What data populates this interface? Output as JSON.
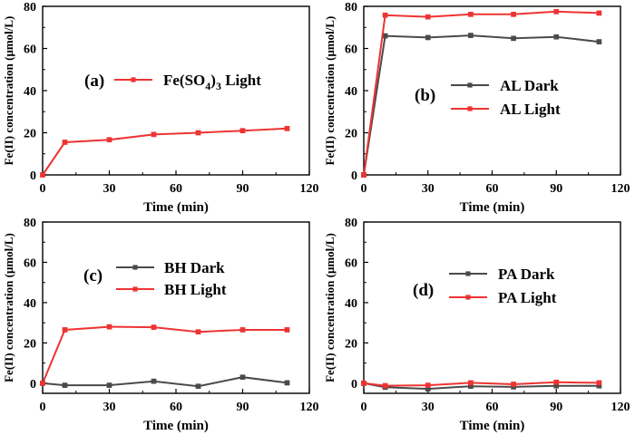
{
  "colors": {
    "dark": "#4a4a4a",
    "light": "#ee3333"
  },
  "chart_data": [
    {
      "type": "line",
      "panel_label": "(a)",
      "xlabel": "Time (min)",
      "ylabel": "Fe(II) concentration (μmol/L)",
      "xlim": [
        0,
        120
      ],
      "ylim": [
        0,
        80
      ],
      "xticks": [
        0,
        30,
        60,
        90,
        120
      ],
      "yticks": [
        0,
        20,
        40,
        60,
        80
      ],
      "legend_position": "center-left",
      "series": [
        {
          "name_parts": [
            "Fe(SO",
            "4",
            ")",
            "3",
            " Light"
          ],
          "color_key": "light",
          "x": [
            0,
            10,
            30,
            50,
            70,
            90,
            110
          ],
          "y": [
            0,
            15.5,
            16.7,
            19.2,
            20.0,
            21.0,
            22.0
          ]
        }
      ]
    },
    {
      "type": "line",
      "panel_label": "(b)",
      "xlabel": "Time (min)",
      "ylabel": "Fe(II) concentration (μmol/L)",
      "xlim": [
        0,
        120
      ],
      "ylim": [
        0,
        80
      ],
      "xticks": [
        0,
        30,
        60,
        90,
        120
      ],
      "yticks": [
        0,
        20,
        40,
        60,
        80
      ],
      "legend_position": "center-right",
      "series": [
        {
          "name": "AL Dark",
          "color_key": "dark",
          "x": [
            0,
            10,
            30,
            50,
            70,
            90,
            110
          ],
          "y": [
            0,
            66.0,
            65.2,
            66.2,
            64.8,
            65.5,
            63.2
          ]
        },
        {
          "name": "AL Light",
          "color_key": "light",
          "x": [
            0,
            10,
            30,
            50,
            70,
            90,
            110
          ],
          "y": [
            0,
            75.8,
            75.0,
            76.2,
            76.2,
            77.5,
            76.8
          ]
        }
      ]
    },
    {
      "type": "line",
      "panel_label": "(c)",
      "xlabel": "Time (min)",
      "ylabel": "Fe(II) concentration (μmol/L)",
      "xlim": [
        0,
        120
      ],
      "ylim": [
        -5,
        80
      ],
      "xticks": [
        0,
        30,
        60,
        90,
        120
      ],
      "yticks": [
        0,
        20,
        40,
        60,
        80
      ],
      "legend_position": "center",
      "series": [
        {
          "name": "BH Dark",
          "color_key": "dark",
          "x": [
            0,
            10,
            30,
            50,
            70,
            90,
            110
          ],
          "y": [
            0,
            -1.0,
            -1.0,
            1.0,
            -1.5,
            3.0,
            0.2
          ]
        },
        {
          "name": "BH Light",
          "color_key": "light",
          "x": [
            0,
            10,
            30,
            50,
            70,
            90,
            110
          ],
          "y": [
            0,
            26.5,
            28.0,
            27.8,
            25.5,
            26.5,
            26.5
          ]
        }
      ]
    },
    {
      "type": "line",
      "panel_label": "(d)",
      "xlabel": "Time (min)",
      "ylabel": "Fe(II) concentration (μmol/L)",
      "xlim": [
        0,
        120
      ],
      "ylim": [
        -5,
        80
      ],
      "xticks": [
        0,
        30,
        60,
        90,
        120
      ],
      "yticks": [
        0,
        20,
        40,
        60,
        80
      ],
      "legend_position": "center",
      "series": [
        {
          "name": "PA Dark",
          "color_key": "dark",
          "x": [
            0,
            10,
            30,
            50,
            70,
            90,
            110
          ],
          "y": [
            0,
            -2.0,
            -2.8,
            -1.5,
            -1.8,
            -1.3,
            -1.3
          ]
        },
        {
          "name": "PA Light",
          "color_key": "light",
          "x": [
            0,
            10,
            30,
            50,
            70,
            90,
            110
          ],
          "y": [
            0,
            -1.2,
            -1.0,
            0.2,
            -0.5,
            0.5,
            0.2
          ]
        }
      ]
    }
  ]
}
